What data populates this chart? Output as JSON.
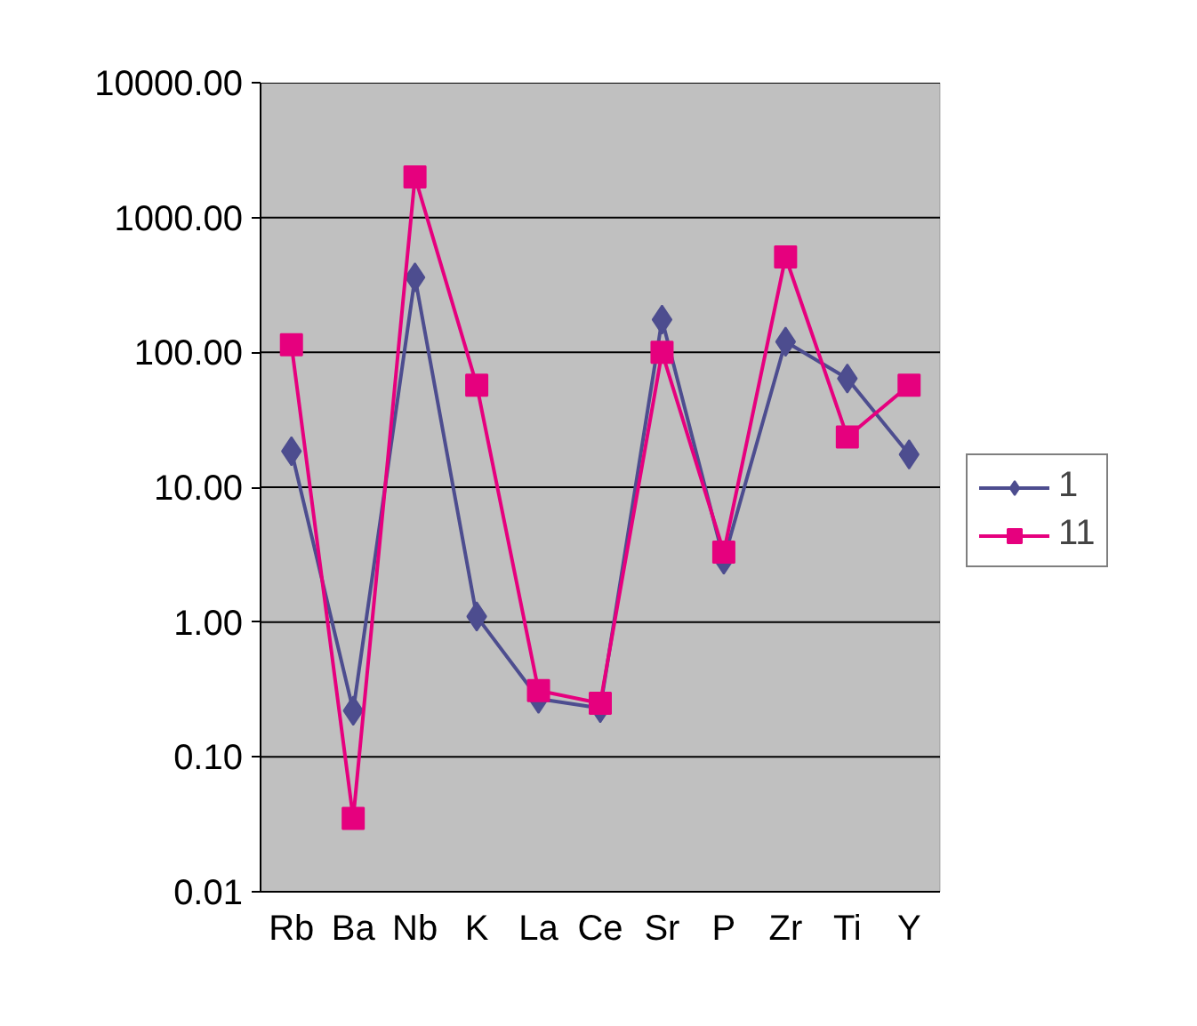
{
  "chart_data": {
    "type": "line",
    "categories": [
      "Rb",
      "Ba",
      "Nb",
      "K",
      "La",
      "Ce",
      "Sr",
      "P",
      "Zr",
      "Ti",
      "Y"
    ],
    "series": [
      {
        "name": "1",
        "color": "#4d4d8f",
        "marker": "diamond",
        "values": [
          18.5,
          0.22,
          360,
          1.1,
          0.27,
          0.23,
          175,
          2.9,
          120,
          64,
          17.5
        ]
      },
      {
        "name": "11",
        "color": "#e6007e",
        "marker": "square",
        "values": [
          114,
          0.035,
          2000,
          57,
          0.31,
          0.25,
          100,
          3.3,
          510,
          23.6,
          57
        ]
      }
    ],
    "log": "y",
    "ylim": [
      0.01,
      10000
    ],
    "yticks": [
      {
        "value": 0.01,
        "label": "0.01"
      },
      {
        "value": 0.1,
        "label": "0.10"
      },
      {
        "value": 1,
        "label": "1.00"
      },
      {
        "value": 10,
        "label": "10.00"
      },
      {
        "value": 100,
        "label": "100.00"
      },
      {
        "value": 1000,
        "label": "1000.00"
      },
      {
        "value": 10000,
        "label": "10000.00"
      }
    ],
    "grid": "y",
    "legend": "right",
    "line_style": "solid"
  }
}
